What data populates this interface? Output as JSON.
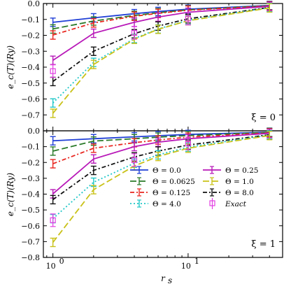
{
  "chart_data": {
    "type": "line",
    "x_scale": "log",
    "x_label": "r_s",
    "x_label_main": "r",
    "x_label_sub": "s",
    "xlim": [
      0.85,
      50
    ],
    "x_ticks": [
      {
        "value": 1,
        "base": "10",
        "exp": "0"
      },
      {
        "value": 10,
        "base": "10",
        "exp": "1"
      }
    ],
    "y_label": "e_c(T)(Ry)",
    "grid": false,
    "legend_location": "lower-right of bottom panel",
    "series_styles": [
      {
        "key": "t0",
        "label": "Θ = 0.0",
        "color": "#1f3fd6",
        "dash": "",
        "marker": "hbar"
      },
      {
        "key": "t0625",
        "label": "Θ = 0.0625",
        "color": "#2a7a2a",
        "dash": "9,4",
        "marker": "hbar"
      },
      {
        "key": "t125",
        "label": "Θ = 0.125",
        "color": "#e8261f",
        "dash": "6,3,2,3",
        "marker": "hbar"
      },
      {
        "key": "t25",
        "label": "Θ = 0.25",
        "color": "#b819b8",
        "dash": "",
        "marker": "hbar"
      },
      {
        "key": "t1",
        "label": "Θ = 1.0",
        "color": "#c9c21a",
        "dash": "9,4",
        "marker": "hbar"
      },
      {
        "key": "t4",
        "label": "Θ = 4.0",
        "color": "#20c7c7",
        "dash": "2,3",
        "marker": "hbar"
      },
      {
        "key": "t8",
        "label": "Θ = 8.0",
        "color": "#111111",
        "dash": "6,3,2,3",
        "marker": "hbar"
      },
      {
        "key": "exact",
        "label": "Exact",
        "color": "#e23ee2",
        "dash": "",
        "marker": "square"
      }
    ],
    "legend_columns": [
      [
        "t0",
        "t0625",
        "t125",
        "t4"
      ],
      [
        "t25",
        "t1",
        "t8",
        "exact"
      ]
    ],
    "panels": [
      {
        "label": "ξ = 0",
        "ylim": [
          -0.8,
          0.0
        ],
        "y_ticks": [
          0.0,
          -0.1,
          -0.2,
          -0.3,
          -0.4,
          -0.5,
          -0.6,
          -0.7
        ],
        "y_tick_labels": [
          "0.0",
          "−0.1",
          "−0.2",
          "−0.3",
          "−0.4",
          "−0.5",
          "−0.6",
          "−0.7"
        ],
        "series": [
          {
            "key": "t0",
            "x": [
              1,
              2,
              4,
              6,
              10,
              40
            ],
            "y": [
              -0.118,
              -0.09,
              -0.064,
              -0.05,
              -0.036,
              -0.012
            ]
          },
          {
            "key": "t0625",
            "x": [
              1,
              2,
              4,
              6,
              10,
              40
            ],
            "y": [
              -0.16,
              -0.11,
              -0.075,
              -0.058,
              -0.04,
              -0.014
            ]
          },
          {
            "key": "t125",
            "x": [
              1,
              2,
              4,
              6,
              10,
              40
            ],
            "y": [
              -0.198,
              -0.122,
              -0.08,
              -0.062,
              -0.042,
              -0.015
            ]
          },
          {
            "key": "t25",
            "x": [
              1,
              2,
              4,
              6,
              10,
              40
            ],
            "y": [
              -0.357,
              -0.187,
              -0.118,
              -0.085,
              -0.055,
              -0.018
            ]
          },
          {
            "key": "t8",
            "x": [
              1,
              2,
              4,
              6,
              10,
              40
            ],
            "y": [
              -0.49,
              -0.3,
              -0.19,
              -0.142,
              -0.096,
              -0.025
            ]
          },
          {
            "key": "t4",
            "x": [
              1,
              2,
              4,
              6,
              10,
              40
            ],
            "y": [
              -0.625,
              -0.37,
              -0.22,
              -0.16,
              -0.105,
              -0.025
            ]
          },
          {
            "key": "t1",
            "x": [
              1,
              2,
              4,
              6,
              10,
              40
            ],
            "y": [
              -0.69,
              -0.383,
              -0.225,
              -0.162,
              -0.108,
              -0.028
            ]
          },
          {
            "key": "exact",
            "x": [
              1,
              4,
              10
            ],
            "y": [
              -0.425,
              -0.185,
              -0.095
            ]
          }
        ]
      },
      {
        "label": "ξ = 1",
        "ylim": [
          -0.8,
          0.0
        ],
        "y_ticks": [
          0.0,
          -0.1,
          -0.2,
          -0.3,
          -0.4,
          -0.5,
          -0.6,
          -0.7,
          -0.8
        ],
        "y_tick_labels": [
          "0.0",
          "−0.1",
          "−0.2",
          "−0.3",
          "−0.4",
          "−0.5",
          "−0.6",
          "−0.7",
          "−0.8"
        ],
        "series": [
          {
            "key": "t0",
            "x": [
              1,
              2,
              4,
              6,
              10,
              40
            ],
            "y": [
              -0.063,
              -0.05,
              -0.038,
              -0.031,
              -0.023,
              -0.009
            ]
          },
          {
            "key": "t0625",
            "x": [
              1,
              2,
              4,
              6,
              10,
              40
            ],
            "y": [
              -0.128,
              -0.065,
              -0.05,
              -0.04,
              -0.03,
              -0.01
            ]
          },
          {
            "key": "t125",
            "x": [
              1,
              2,
              4,
              6,
              10,
              40
            ],
            "y": [
              -0.208,
              -0.11,
              -0.075,
              -0.058,
              -0.04,
              -0.013
            ]
          },
          {
            "key": "t25",
            "x": [
              1,
              2,
              4,
              6,
              10,
              40
            ],
            "y": [
              -0.398,
              -0.178,
              -0.1,
              -0.072,
              -0.05,
              -0.016
            ]
          },
          {
            "key": "t8",
            "x": [
              1,
              2,
              4,
              6,
              10,
              40
            ],
            "y": [
              -0.435,
              -0.25,
              -0.165,
              -0.128,
              -0.09,
              -0.025
            ]
          },
          {
            "key": "t4",
            "x": [
              1,
              2,
              4,
              6,
              10,
              40
            ],
            "y": [
              -0.555,
              -0.325,
              -0.205,
              -0.152,
              -0.103,
              -0.026
            ]
          },
          {
            "key": "t1",
            "x": [
              1,
              2,
              4,
              6,
              10,
              40
            ],
            "y": [
              -0.705,
              -0.372,
              -0.222,
              -0.162,
              -0.11,
              -0.03
            ]
          },
          {
            "key": "exact",
            "x": [
              1,
              4,
              10
            ],
            "y": [
              -0.565,
              -0.185,
              -0.08
            ]
          }
        ]
      }
    ]
  }
}
